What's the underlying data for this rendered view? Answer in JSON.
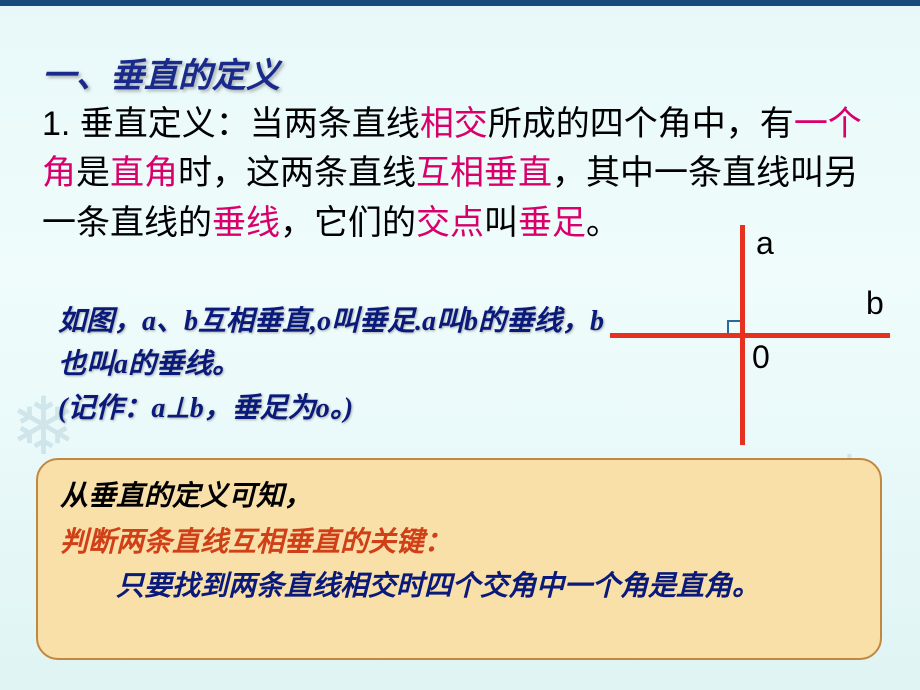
{
  "colors": {
    "heading": "#1a2a8a",
    "highlight": "#d8006a",
    "figure_text": "#0a1a7a",
    "axis": "#e63020",
    "note_bg": "#f9dfa8",
    "note_border": "#c08840",
    "note_key": "#d04018",
    "note_body": "#0a1a7a"
  },
  "heading": "一、垂直的定义",
  "definition": {
    "segments": [
      {
        "t": "1. 垂直定义：当两条直线",
        "hl": false
      },
      {
        "t": "相交",
        "hl": true
      },
      {
        "t": "所成的四个角中，有",
        "hl": false
      },
      {
        "t": "一个角",
        "hl": true
      },
      {
        "t": "是",
        "hl": false
      },
      {
        "t": "直角",
        "hl": true
      },
      {
        "t": "时，这两条直线",
        "hl": false
      },
      {
        "t": "互相垂直",
        "hl": true
      },
      {
        "t": "，其中一条直线叫另一条直线的",
        "hl": false
      },
      {
        "t": "垂线",
        "hl": true
      },
      {
        "t": "，它们的",
        "hl": false
      },
      {
        "t": "交点",
        "hl": true
      },
      {
        "t": "叫",
        "hl": false
      },
      {
        "t": "垂足",
        "hl": true
      },
      {
        "t": "。",
        "hl": false
      }
    ]
  },
  "figure_text": {
    "line1": "如图，a、b互相垂直,o叫垂足.a叫b的垂线，b也叫a的垂线。",
    "line2": "(记作：a⊥b，垂足为o。)"
  },
  "diagram": {
    "label_a": "a",
    "label_b": "b",
    "label_o": "0"
  },
  "note": {
    "line1": "从垂直的定义可知，",
    "line2": "判断两条直线互相垂直的关键：",
    "line3": "只要找到两条直线相交时四个交角中一个角是直角。"
  }
}
